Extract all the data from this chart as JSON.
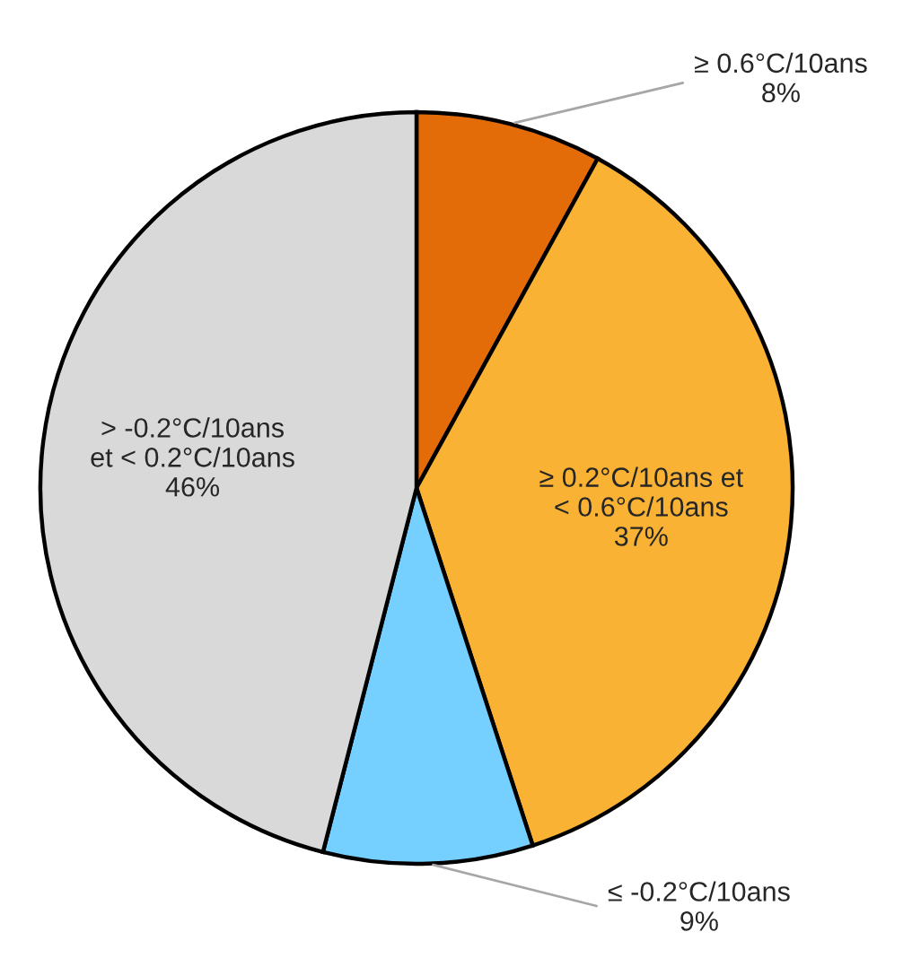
{
  "chart_data": {
    "type": "pie",
    "categories": [
      "≥ 0.6°C/10ans",
      "≥ 0.2°C/10ans et\n< 0.6°C/10ans",
      "≤ -0.2°C/10ans",
      "> -0.2°C/10ans\net < 0.2°C/10ans"
    ],
    "values": [
      8,
      37,
      9,
      46
    ],
    "value_labels": [
      "8%",
      "37%",
      "9%",
      "46%"
    ],
    "colors": [
      "#e36c09",
      "#f9b233",
      "#75cfff",
      "#d9d9d9"
    ],
    "legend": false
  }
}
